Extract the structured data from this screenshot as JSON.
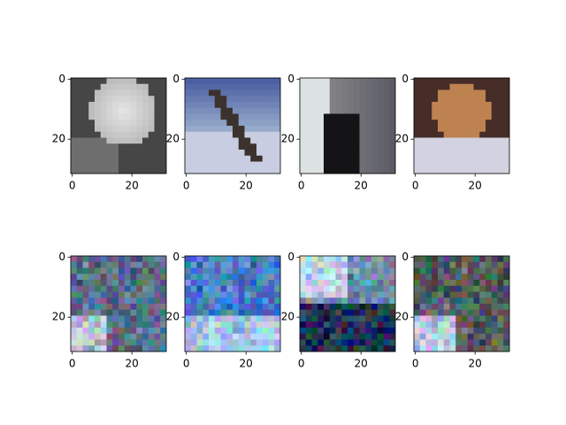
{
  "chart_data": [
    {
      "type": "image",
      "xlim": [
        -0.5,
        31.5
      ],
      "ylim": [
        31.5,
        -0.5
      ],
      "xticks": [
        0,
        20
      ],
      "yticks": [
        0,
        20
      ]
    },
    {
      "type": "image",
      "xlim": [
        -0.5,
        31.5
      ],
      "ylim": [
        31.5,
        -0.5
      ],
      "xticks": [
        0,
        20
      ],
      "yticks": [
        0,
        20
      ]
    },
    {
      "type": "image",
      "xlim": [
        -0.5,
        31.5
      ],
      "ylim": [
        31.5,
        -0.5
      ],
      "xticks": [
        0,
        20
      ],
      "yticks": [
        0,
        20
      ]
    },
    {
      "type": "image",
      "xlim": [
        -0.5,
        31.5
      ],
      "ylim": [
        31.5,
        -0.5
      ],
      "xticks": [
        0,
        20
      ],
      "yticks": [
        0,
        20
      ]
    },
    {
      "type": "image",
      "xlim": [
        -0.5,
        31.5
      ],
      "ylim": [
        31.5,
        -0.5
      ],
      "xticks": [
        0,
        20
      ],
      "yticks": [
        0,
        20
      ]
    },
    {
      "type": "image",
      "xlim": [
        -0.5,
        31.5
      ],
      "ylim": [
        31.5,
        -0.5
      ],
      "xticks": [
        0,
        20
      ],
      "yticks": [
        0,
        20
      ]
    },
    {
      "type": "image",
      "xlim": [
        -0.5,
        31.5
      ],
      "ylim": [
        31.5,
        -0.5
      ],
      "xticks": [
        0,
        20
      ],
      "yticks": [
        0,
        20
      ]
    },
    {
      "type": "image",
      "xlim": [
        -0.5,
        31.5
      ],
      "ylim": [
        31.5,
        -0.5
      ],
      "xticks": [
        0,
        20
      ],
      "yticks": [
        0,
        20
      ]
    }
  ]
}
